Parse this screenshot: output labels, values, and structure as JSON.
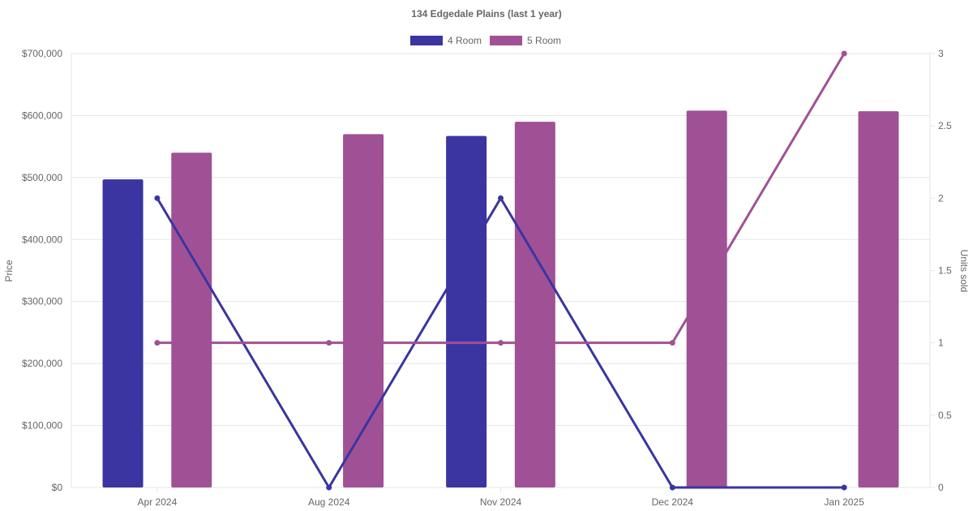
{
  "chart_data": {
    "type": "bar",
    "title": "134 Edgedale  Plains (last 1 year)",
    "legend_position": "top-center",
    "categories": [
      "Apr 2024",
      "Aug 2024",
      "Nov 2024",
      "Dec 2024",
      "Jan 2025"
    ],
    "series": [
      {
        "name": "4 Room",
        "color": "#3a35a0",
        "values": [
          497000,
          null,
          567000,
          null,
          null
        ]
      },
      {
        "name": "5 Room",
        "color": "#a05196",
        "values": [
          540000,
          570000,
          590000,
          608000,
          607000
        ]
      }
    ],
    "line_series": [
      {
        "name": "4 Room units sold",
        "color": "#3a35a0",
        "values": [
          2,
          0,
          2,
          0,
          0
        ]
      },
      {
        "name": "5 Room units sold",
        "color": "#a05196",
        "values": [
          1,
          1,
          1,
          1,
          3
        ]
      }
    ],
    "y_left": {
      "label": "Price",
      "min": 0,
      "max": 700000,
      "ticks": [
        0,
        100000,
        200000,
        300000,
        400000,
        500000,
        600000,
        700000
      ],
      "tick_labels": [
        "$0",
        "$100,000",
        "$200,000",
        "$300,000",
        "$400,000",
        "$500,000",
        "$600,000",
        "$700,000"
      ]
    },
    "y_right": {
      "label": "Units sold",
      "min": 0,
      "max": 3,
      "ticks": [
        0,
        0.5,
        1,
        1.5,
        2,
        2.5,
        3
      ],
      "tick_labels": [
        "0",
        "0.5",
        "1",
        "1.5",
        "2",
        "2.5",
        "3"
      ]
    },
    "grid": true
  }
}
